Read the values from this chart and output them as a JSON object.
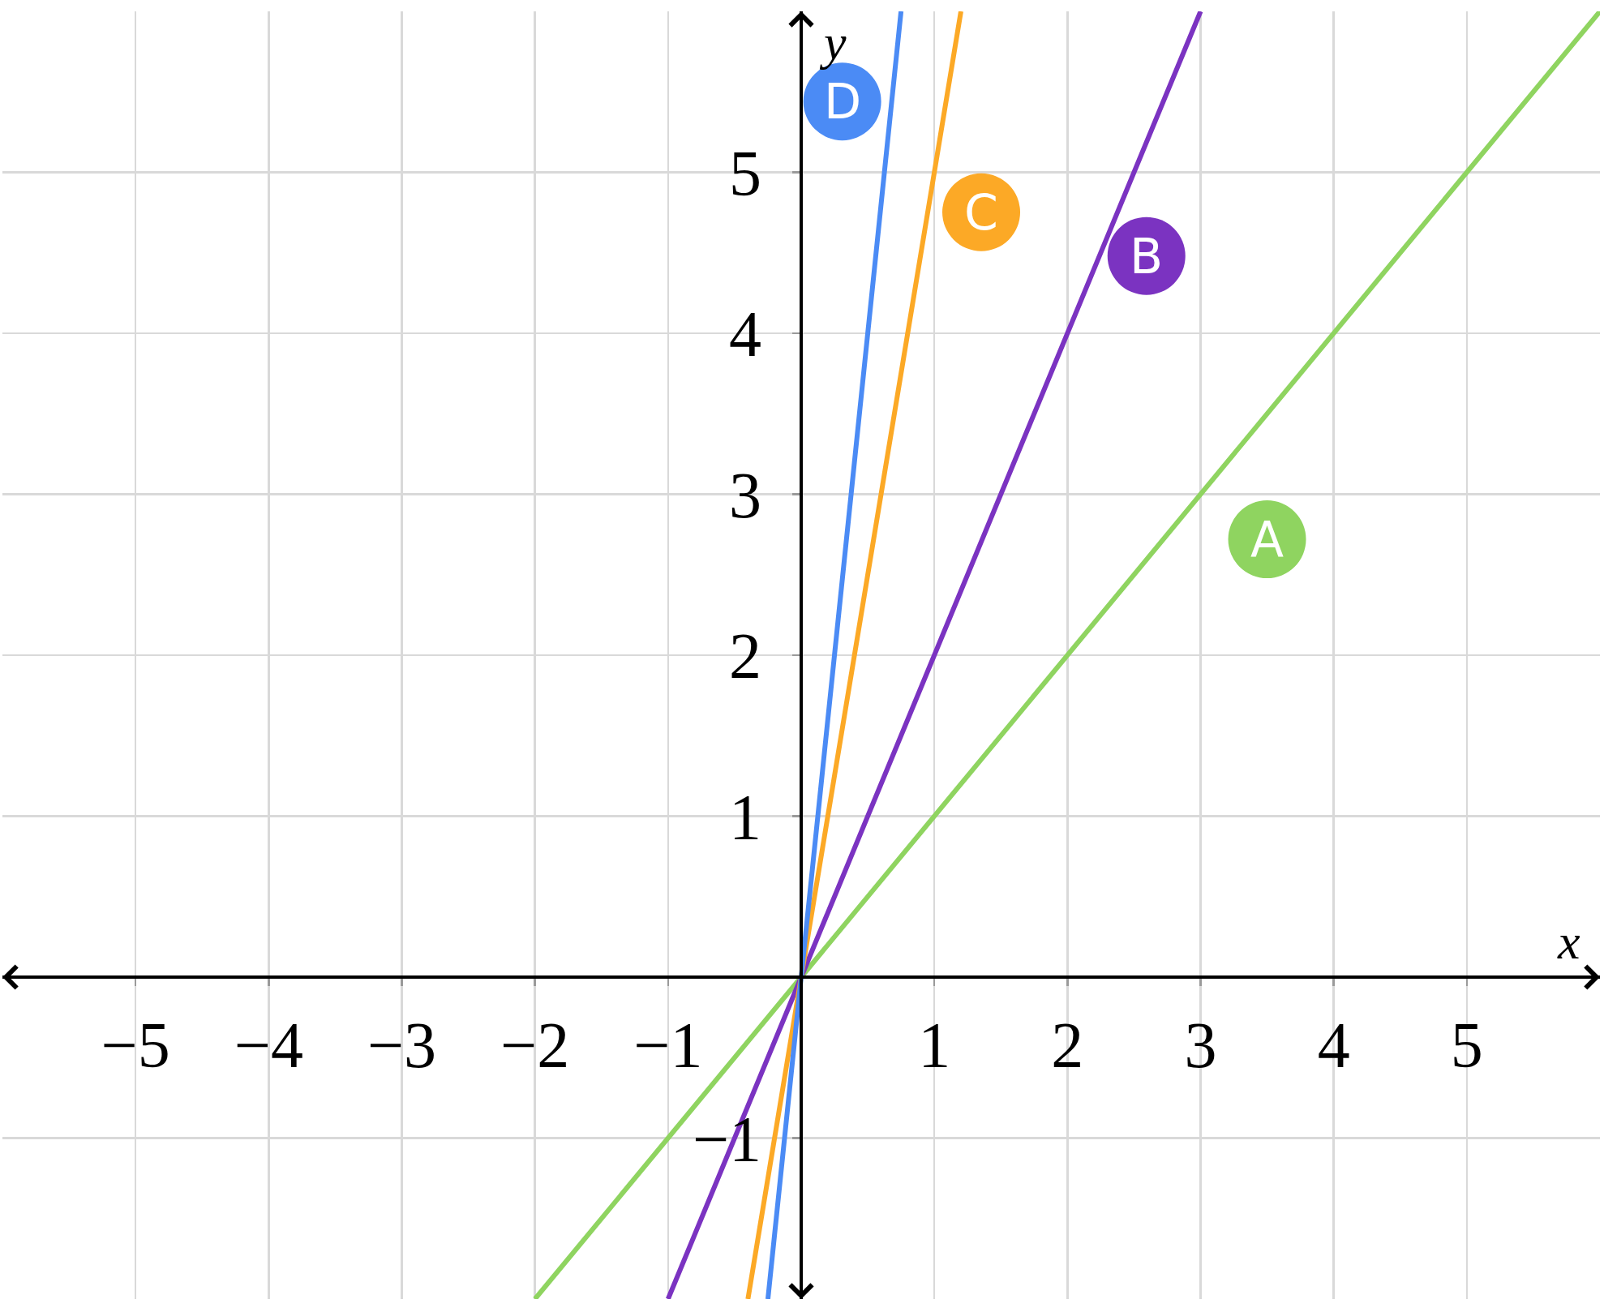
{
  "chart_data": {
    "type": "line",
    "xlabel": "x",
    "ylabel": "y",
    "series": [
      {
        "name": "A",
        "color": "#8fd460",
        "x": [
          -2,
          0,
          6
        ],
        "values": [
          -2,
          0,
          6
        ]
      },
      {
        "name": "B",
        "color": "#7b33c1",
        "x": [
          -1,
          0,
          3
        ],
        "values": [
          -2,
          0,
          6
        ]
      },
      {
        "name": "C",
        "color": "#fca926",
        "x": [
          -0.4,
          0,
          1.2
        ],
        "values": [
          -2,
          0,
          6
        ]
      },
      {
        "name": "D",
        "color": "#4b8bf5",
        "x": [
          -0.25,
          0,
          0.75
        ],
        "values": [
          -2,
          0,
          6
        ]
      }
    ],
    "xlim": [
      -6,
      6
    ],
    "ylim": [
      -2,
      6
    ],
    "xticks": [
      {
        "value": -5,
        "label": "−5"
      },
      {
        "value": -4,
        "label": "−4"
      },
      {
        "value": -3,
        "label": "−3"
      },
      {
        "value": -2,
        "label": "−2"
      },
      {
        "value": -1,
        "label": "−1"
      },
      1,
      2,
      3,
      4,
      5
    ],
    "yticks": [
      {
        "value": -1,
        "label": "−1"
      },
      1,
      2,
      3,
      4,
      5
    ],
    "grid": true,
    "legend": false,
    "marker": "none",
    "line_style": "solid"
  }
}
